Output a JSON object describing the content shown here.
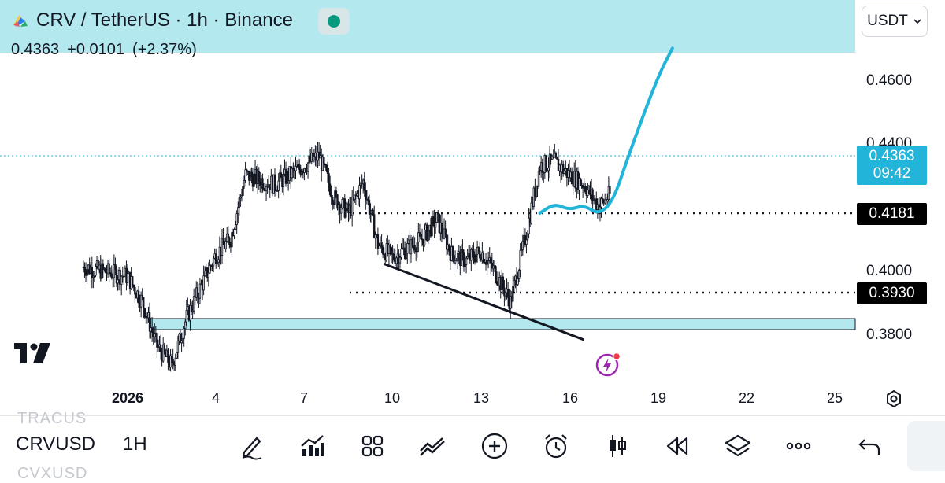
{
  "header": {
    "title": "CRV / TetherUS · 1h · Binance",
    "last_price": "0.4363",
    "change": "+0.0101",
    "change_pct": "(+2.37%)",
    "currency": "USDT"
  },
  "colors": {
    "accent": "#22b5d9",
    "zone": "#b3e8ef",
    "candle": "#131722",
    "status_green": "#089981"
  },
  "price_axis": {
    "labels": [
      "0.4600",
      "0.4400",
      "0.4000",
      "0.3800"
    ],
    "current_price": "0.4363",
    "countdown": "09:42",
    "level_high": "0.4181",
    "level_low": "0.3930"
  },
  "time_axis": {
    "labels": [
      "2026",
      "4",
      "7",
      "10",
      "13",
      "16",
      "19",
      "22",
      "25"
    ]
  },
  "chart_data": {
    "type": "candlestick",
    "symbol": "CRVUSDT",
    "interval": "1h",
    "exchange": "Binance",
    "ylim": [
      0.363,
      0.488
    ],
    "x_ticks": [
      "2026",
      "4",
      "7",
      "10",
      "13",
      "16",
      "19",
      "22",
      "25"
    ],
    "y_ticks": [
      0.38,
      0.4,
      0.44,
      0.46
    ],
    "approx_close_path": [
      {
        "day": -1.5,
        "price": 0.401
      },
      {
        "day": 0.0,
        "price": 0.398
      },
      {
        "day": 0.5,
        "price": 0.39
      },
      {
        "day": 1.0,
        "price": 0.376
      },
      {
        "day": 1.5,
        "price": 0.37
      },
      {
        "day": 2.0,
        "price": 0.385
      },
      {
        "day": 2.5,
        "price": 0.395
      },
      {
        "day": 3.0,
        "price": 0.405
      },
      {
        "day": 3.5,
        "price": 0.41
      },
      {
        "day": 4.0,
        "price": 0.43
      },
      {
        "day": 5.0,
        "price": 0.427
      },
      {
        "day": 6.0,
        "price": 0.433
      },
      {
        "day": 6.5,
        "price": 0.436
      },
      {
        "day": 7.0,
        "price": 0.423
      },
      {
        "day": 7.5,
        "price": 0.418
      },
      {
        "day": 8.0,
        "price": 0.428
      },
      {
        "day": 8.5,
        "price": 0.408
      },
      {
        "day": 9.0,
        "price": 0.404
      },
      {
        "day": 9.5,
        "price": 0.407
      },
      {
        "day": 10.0,
        "price": 0.41
      },
      {
        "day": 10.5,
        "price": 0.416
      },
      {
        "day": 11.0,
        "price": 0.405
      },
      {
        "day": 11.5,
        "price": 0.403
      },
      {
        "day": 12.0,
        "price": 0.406
      },
      {
        "day": 12.5,
        "price": 0.399
      },
      {
        "day": 13.0,
        "price": 0.39
      },
      {
        "day": 13.5,
        "price": 0.41
      },
      {
        "day": 14.0,
        "price": 0.433
      },
      {
        "day": 14.5,
        "price": 0.434
      },
      {
        "day": 15.0,
        "price": 0.43
      },
      {
        "day": 15.5,
        "price": 0.427
      },
      {
        "day": 16.0,
        "price": 0.42
      },
      {
        "day": 16.5,
        "price": 0.425
      },
      {
        "day": 17.0,
        "price": 0.4363
      }
    ],
    "levels": [
      {
        "name": "resistance",
        "price": 0.4181,
        "style": "dotted"
      },
      {
        "name": "support",
        "price": 0.393,
        "style": "dotted"
      }
    ],
    "zones": [
      {
        "name": "demand-zone",
        "from": 0.382,
        "to": 0.385
      },
      {
        "name": "target-zone",
        "from": 0.47,
        "to": 0.488
      }
    ],
    "projection": [
      {
        "day": 14.0,
        "price": 0.418
      },
      {
        "day": 14.5,
        "price": 0.421
      },
      {
        "day": 15.0,
        "price": 0.419
      },
      {
        "day": 15.5,
        "price": 0.4205
      },
      {
        "day": 16.0,
        "price": 0.4175
      },
      {
        "day": 16.5,
        "price": 0.422
      },
      {
        "day": 17.0,
        "price": 0.436
      },
      {
        "day": 18.0,
        "price": 0.461
      },
      {
        "day": 18.5,
        "price": 0.47
      }
    ],
    "trendline": [
      {
        "day": 8.7,
        "price": 0.402
      },
      {
        "day": 15.5,
        "price": 0.378
      }
    ]
  },
  "bottom_toolbar": {
    "symbol": "CRVUSD",
    "timeframe": "1H",
    "ghost_top": "TRACUS",
    "ghost_bottom": "CVXUSD",
    "tools": [
      "draw-icon",
      "indicators-icon",
      "layout-icon",
      "compare-icon",
      "add-icon",
      "alert-icon",
      "candles-icon",
      "replay-icon",
      "layers-icon",
      "more-icon",
      "undo-icon"
    ]
  }
}
